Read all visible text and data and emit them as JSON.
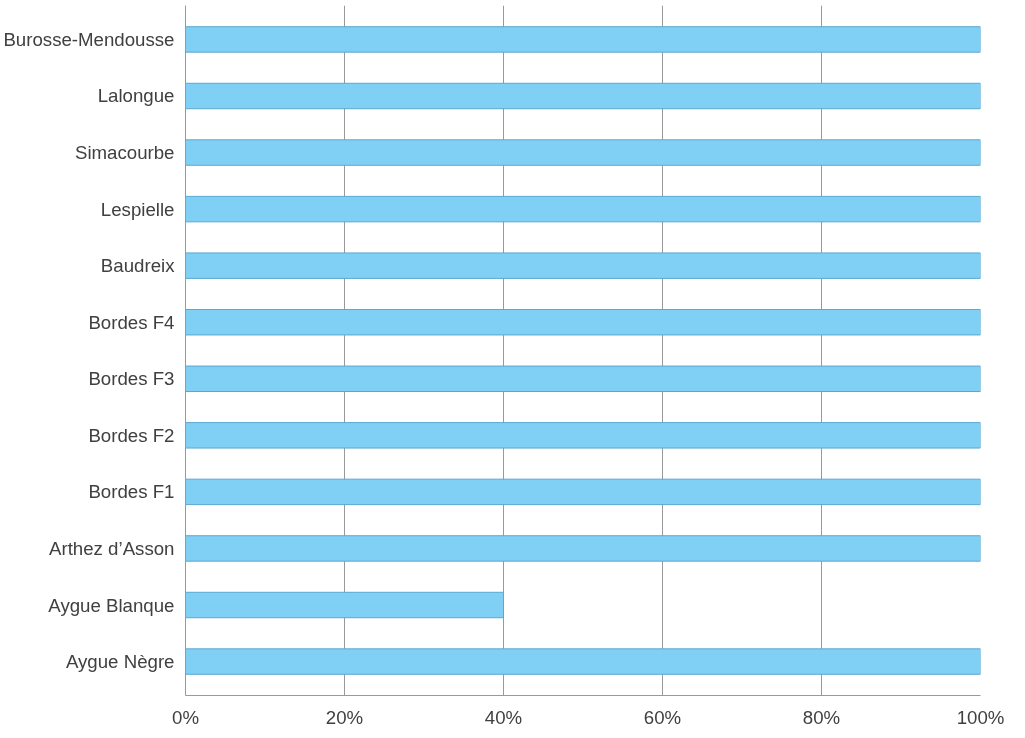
{
  "chart_data": {
    "type": "bar",
    "orientation": "horizontal",
    "categories": [
      "Burosse-Mendousse",
      "Lalongue",
      "Simacourbe",
      "Lespielle",
      "Baudreix",
      "Bordes F4",
      "Bordes F3",
      "Bordes F2",
      "Bordes F1",
      "Arthez d’Asson",
      "Aygue Blanque",
      "Aygue Nègre"
    ],
    "values": [
      100,
      100,
      100,
      100,
      100,
      100,
      100,
      100,
      100,
      100,
      40,
      100
    ],
    "color": "#80cff5",
    "xlim": [
      0,
      100
    ],
    "xticks": [
      {
        "value": 0,
        "label": "0%"
      },
      {
        "value": 20,
        "label": "20%"
      },
      {
        "value": 40,
        "label": "40%"
      },
      {
        "value": 60,
        "label": "60%"
      },
      {
        "value": 80,
        "label": "80%"
      },
      {
        "value": 100,
        "label": "100%"
      }
    ],
    "grid": "x"
  }
}
